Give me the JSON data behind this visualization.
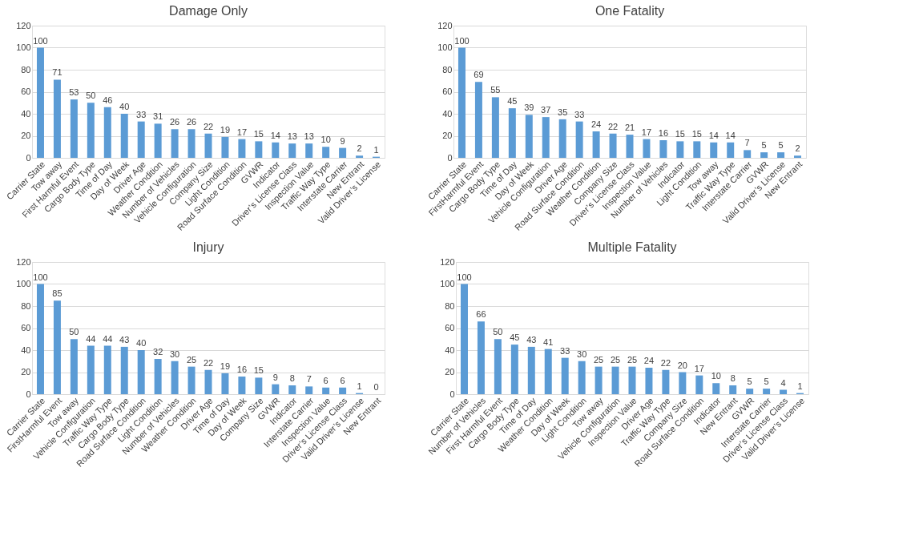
{
  "chart_data": [
    {
      "type": "bar",
      "title": "Damage Only",
      "categories": [
        "Carrier State",
        "Tow away",
        "First Harmful Event",
        "Cargo Body Type",
        "Time of Day",
        "Day of Week",
        "Driver Age",
        "Weather Condition",
        "Number of Vehicles",
        "Vehicle Configuration",
        "Company Size",
        "Light Condition",
        "Road Surface Condition",
        "GVWR",
        "Indicator",
        "Driver’s License Class",
        "Inspection Value",
        "Traffic Way Type",
        "Interstate Carrier",
        "New Entrant",
        "Valid Driver’s License"
      ],
      "values": [
        100,
        71,
        53,
        50,
        46,
        40,
        33,
        31,
        26,
        26,
        22,
        19,
        17,
        15,
        14,
        13,
        13,
        10,
        9,
        2,
        1
      ],
      "color": "#5b9bd5",
      "ylim": [
        0,
        120
      ],
      "yticks": [
        0,
        20,
        40,
        60,
        80,
        100,
        120
      ],
      "grid": "y",
      "data_labels": true
    },
    {
      "type": "bar",
      "title": "One Fatality",
      "categories": [
        "Carrier State",
        "FirstHarmful Event",
        "Cargo Body Type",
        "Time of Day",
        "Day of Week",
        "Vehicle Configuration",
        "Driver Age",
        "Road Surface Condition",
        "Weather Condition",
        "Company Size",
        "Driver’s License Class",
        "Inspection Value",
        "Number of Vehicles",
        "Indicator",
        "Light Condition",
        "Tow away",
        "Traffic Way Type",
        "Interstate Carrier",
        "GVWR",
        "Valid Driver’s License",
        "New Entrant"
      ],
      "values": [
        100,
        69,
        55,
        45,
        39,
        37,
        35,
        33,
        24,
        22,
        21,
        17,
        16,
        15,
        15,
        14,
        14,
        7,
        5,
        5,
        2
      ],
      "color": "#5b9bd5",
      "ylim": [
        0,
        120
      ],
      "yticks": [
        0,
        20,
        40,
        60,
        80,
        100,
        120
      ],
      "grid": "y",
      "data_labels": true
    },
    {
      "type": "bar",
      "title": "Injury",
      "categories": [
        "Carrier State",
        "FirstHarmful Event",
        "Tow away",
        "Vehicle Configuration",
        "Traffic Way Type",
        "Cargo Body Type",
        "Road Surface Condition",
        "Light Condition",
        "Number of Vehicles",
        "Weather Condition",
        "Driver Age",
        "Time of Day",
        "Day of Week",
        "Company Size",
        "GVWR",
        "Indicator",
        "Interstate Carrier",
        "Inspection Value",
        "Driver’s License Class",
        "Valid Driver’s License",
        "New Entrant"
      ],
      "values": [
        100,
        85,
        50,
        44,
        44,
        43,
        40,
        32,
        30,
        25,
        22,
        19,
        16,
        15,
        9,
        8,
        7,
        6,
        6,
        1,
        0
      ],
      "color": "#5b9bd5",
      "ylim": [
        0,
        120
      ],
      "yticks": [
        0,
        20,
        40,
        60,
        80,
        100,
        120
      ],
      "grid": "y",
      "data_labels": true
    },
    {
      "type": "bar",
      "title": "Multiple Fatality",
      "categories": [
        "Carrier State",
        "Number of Vehicles",
        "First Harmful Event",
        "Cargo Body Type",
        "Time of Day",
        "Weather Condition",
        "Day of Week",
        "Light Condition",
        "Tow away",
        "Vehicle Configuration",
        "Inspection Value",
        "Driver Age",
        "Traffic Way Type",
        "Company Size",
        "Road Surface Condition",
        "Indicator",
        "New Entrant",
        "GVWR",
        "Interstate Carrier",
        "Driver’s License Class",
        "Valid Driver’s License"
      ],
      "values": [
        100,
        66,
        50,
        45,
        43,
        41,
        33,
        30,
        25,
        25,
        25,
        24,
        22,
        20,
        17,
        10,
        8,
        5,
        5,
        4,
        1
      ],
      "color": "#5b9bd5",
      "ylim": [
        0,
        120
      ],
      "yticks": [
        0,
        20,
        40,
        60,
        80,
        100,
        120
      ],
      "grid": "y",
      "data_labels": true
    }
  ]
}
